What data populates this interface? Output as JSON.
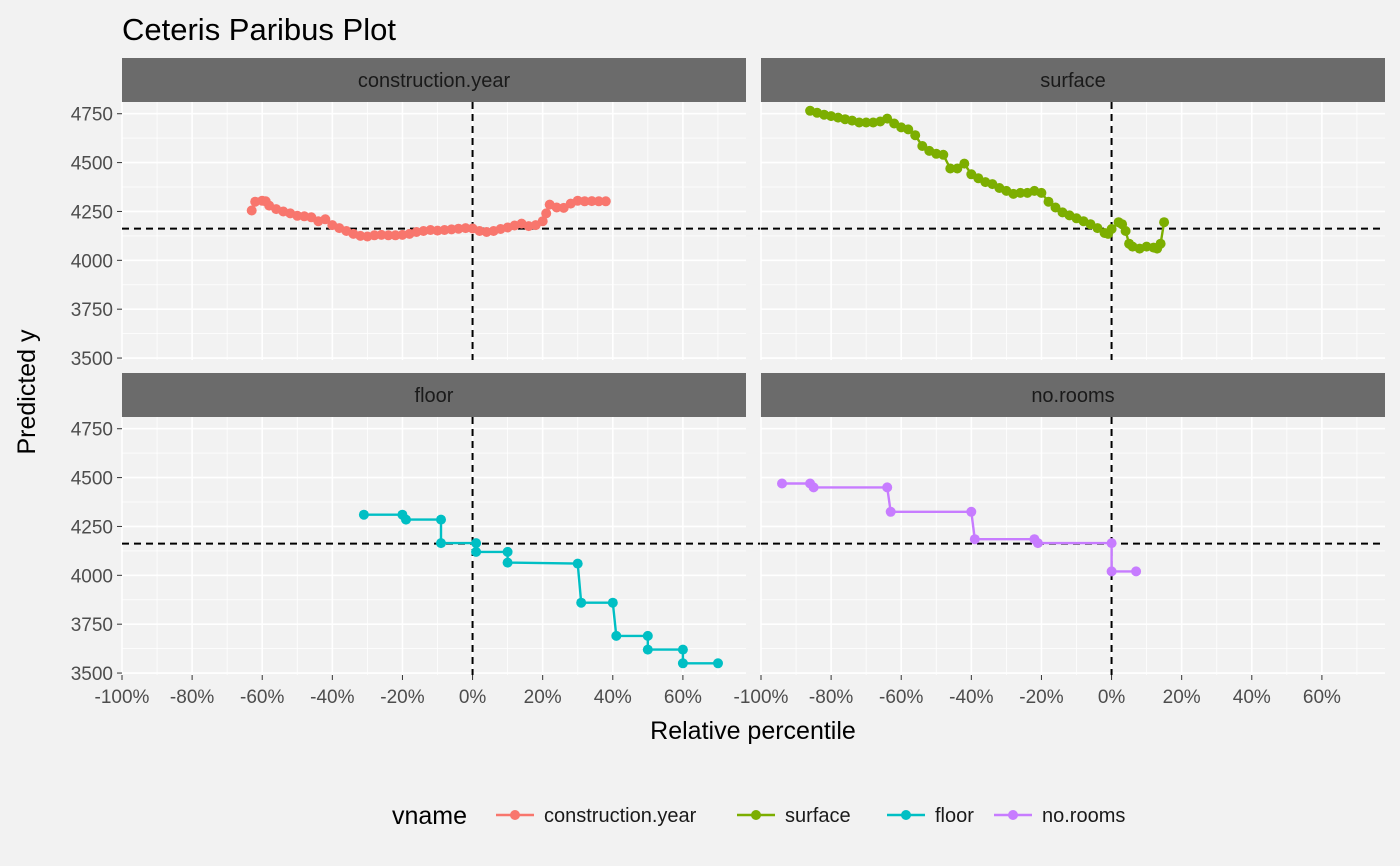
{
  "chart_data": {
    "type": "line",
    "title": "Ceteris Paribus Plot",
    "xlabel": "Relative percentile",
    "ylabel": "Predicted y",
    "xlim": [
      -1.0,
      0.78
    ],
    "ylim": [
      3490,
      4810
    ],
    "x_ticks": [
      -1.0,
      -0.8,
      -0.6,
      -0.4,
      -0.2,
      0.0,
      0.2,
      0.4,
      0.6
    ],
    "x_tick_labels": [
      "-100%",
      "-80%",
      "-60%",
      "-40%",
      "-20%",
      "0%",
      "20%",
      "40%",
      "60%"
    ],
    "y_ticks": [
      3500,
      3750,
      4000,
      4250,
      4500,
      4750
    ],
    "y_tick_labels": [
      "3500",
      "3750",
      "4000",
      "4250",
      "4500",
      "4750"
    ],
    "reference_lines": {
      "x": 0.0,
      "y": 4162
    },
    "grid": true,
    "legend": {
      "title": "vname",
      "position": "bottom",
      "entries": [
        "construction.year",
        "surface",
        "floor",
        "no.rooms"
      ]
    },
    "series": [
      {
        "name": "construction.year",
        "panel": "construction.year",
        "color": "#F8766D",
        "points": [
          [
            -0.63,
            4255
          ],
          [
            -0.62,
            4300
          ],
          [
            -0.6,
            4305
          ],
          [
            -0.59,
            4302
          ],
          [
            -0.58,
            4280
          ],
          [
            -0.56,
            4262
          ],
          [
            -0.54,
            4250
          ],
          [
            -0.52,
            4240
          ],
          [
            -0.5,
            4228
          ],
          [
            -0.48,
            4225
          ],
          [
            -0.46,
            4220
          ],
          [
            -0.44,
            4200
          ],
          [
            -0.42,
            4210
          ],
          [
            -0.4,
            4180
          ],
          [
            -0.38,
            4165
          ],
          [
            -0.36,
            4150
          ],
          [
            -0.34,
            4135
          ],
          [
            -0.32,
            4125
          ],
          [
            -0.3,
            4122
          ],
          [
            -0.28,
            4128
          ],
          [
            -0.26,
            4130
          ],
          [
            -0.24,
            4128
          ],
          [
            -0.22,
            4128
          ],
          [
            -0.2,
            4130
          ],
          [
            -0.18,
            4135
          ],
          [
            -0.16,
            4145
          ],
          [
            -0.14,
            4150
          ],
          [
            -0.12,
            4155
          ],
          [
            -0.1,
            4152
          ],
          [
            -0.08,
            4155
          ],
          [
            -0.06,
            4158
          ],
          [
            -0.04,
            4162
          ],
          [
            -0.02,
            4165
          ],
          [
            0.0,
            4163
          ],
          [
            0.02,
            4150
          ],
          [
            0.04,
            4145
          ],
          [
            0.06,
            4150
          ],
          [
            0.08,
            4160
          ],
          [
            0.1,
            4168
          ],
          [
            0.12,
            4178
          ],
          [
            0.14,
            4188
          ],
          [
            0.16,
            4175
          ],
          [
            0.18,
            4180
          ],
          [
            0.2,
            4200
          ],
          [
            0.21,
            4240
          ],
          [
            0.22,
            4285
          ],
          [
            0.24,
            4270
          ],
          [
            0.26,
            4268
          ],
          [
            0.28,
            4290
          ],
          [
            0.3,
            4305
          ],
          [
            0.32,
            4302
          ],
          [
            0.34,
            4303
          ],
          [
            0.36,
            4302
          ],
          [
            0.38,
            4302
          ]
        ]
      },
      {
        "name": "surface",
        "panel": "surface",
        "color": "#7CAE00",
        "points": [
          [
            -0.86,
            4765
          ],
          [
            -0.84,
            4755
          ],
          [
            -0.82,
            4745
          ],
          [
            -0.8,
            4738
          ],
          [
            -0.78,
            4730
          ],
          [
            -0.76,
            4722
          ],
          [
            -0.74,
            4715
          ],
          [
            -0.72,
            4705
          ],
          [
            -0.7,
            4705
          ],
          [
            -0.68,
            4705
          ],
          [
            -0.66,
            4710
          ],
          [
            -0.64,
            4725
          ],
          [
            -0.62,
            4700
          ],
          [
            -0.6,
            4680
          ],
          [
            -0.58,
            4670
          ],
          [
            -0.56,
            4640
          ],
          [
            -0.54,
            4585
          ],
          [
            -0.52,
            4560
          ],
          [
            -0.5,
            4545
          ],
          [
            -0.48,
            4540
          ],
          [
            -0.46,
            4470
          ],
          [
            -0.44,
            4470
          ],
          [
            -0.42,
            4495
          ],
          [
            -0.4,
            4440
          ],
          [
            -0.38,
            4420
          ],
          [
            -0.36,
            4400
          ],
          [
            -0.34,
            4390
          ],
          [
            -0.32,
            4370
          ],
          [
            -0.3,
            4355
          ],
          [
            -0.28,
            4340
          ],
          [
            -0.26,
            4345
          ],
          [
            -0.24,
            4345
          ],
          [
            -0.22,
            4355
          ],
          [
            -0.2,
            4345
          ],
          [
            -0.18,
            4300
          ],
          [
            -0.16,
            4270
          ],
          [
            -0.14,
            4245
          ],
          [
            -0.12,
            4230
          ],
          [
            -0.1,
            4215
          ],
          [
            -0.08,
            4200
          ],
          [
            -0.06,
            4185
          ],
          [
            -0.04,
            4165
          ],
          [
            -0.02,
            4140
          ],
          [
            -0.01,
            4135
          ],
          [
            0.0,
            4160
          ],
          [
            0.02,
            4195
          ],
          [
            0.03,
            4185
          ],
          [
            0.04,
            4150
          ],
          [
            0.05,
            4085
          ],
          [
            0.06,
            4070
          ],
          [
            0.08,
            4060
          ],
          [
            0.1,
            4070
          ],
          [
            0.12,
            4065
          ],
          [
            0.13,
            4060
          ],
          [
            0.14,
            4085
          ],
          [
            0.15,
            4195
          ]
        ]
      },
      {
        "name": "floor",
        "panel": "floor",
        "color": "#00BFC4",
        "points": [
          [
            -0.31,
            4310
          ],
          [
            -0.2,
            4310
          ],
          [
            -0.19,
            4285
          ],
          [
            -0.09,
            4285
          ],
          [
            -0.09,
            4165
          ],
          [
            0.01,
            4165
          ],
          [
            0.01,
            4120
          ],
          [
            0.1,
            4120
          ],
          [
            0.1,
            4065
          ],
          [
            0.3,
            4060
          ],
          [
            0.31,
            3860
          ],
          [
            0.4,
            3860
          ],
          [
            0.41,
            3690
          ],
          [
            0.5,
            3690
          ],
          [
            0.5,
            3620
          ],
          [
            0.6,
            3620
          ],
          [
            0.6,
            3550
          ],
          [
            0.7,
            3550
          ]
        ]
      },
      {
        "name": "no.rooms",
        "panel": "no.rooms",
        "color": "#C77CFF",
        "points": [
          [
            -0.94,
            4470
          ],
          [
            -0.86,
            4470
          ],
          [
            -0.85,
            4450
          ],
          [
            -0.64,
            4450
          ],
          [
            -0.63,
            4325
          ],
          [
            -0.4,
            4325
          ],
          [
            -0.39,
            4185
          ],
          [
            -0.22,
            4185
          ],
          [
            -0.21,
            4165
          ],
          [
            0.0,
            4165
          ],
          [
            0.0,
            4020
          ],
          [
            0.07,
            4020
          ]
        ]
      }
    ]
  },
  "panels": [
    "construction.year",
    "surface",
    "floor",
    "no.rooms"
  ]
}
